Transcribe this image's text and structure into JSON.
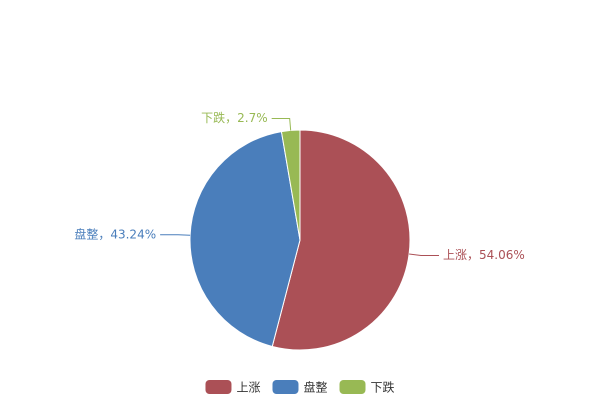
{
  "chart_data": {
    "type": "pie",
    "categories": [
      "上涨",
      "盘整",
      "下跌"
    ],
    "values": [
      54.06,
      43.24,
      2.7
    ],
    "value_labels": [
      "上涨，54.06%",
      "盘整，43.24%",
      "下跌，2.7%"
    ],
    "colors": [
      "#ab5056",
      "#4a7ebb",
      "#98b954"
    ],
    "legend": "bottom"
  }
}
